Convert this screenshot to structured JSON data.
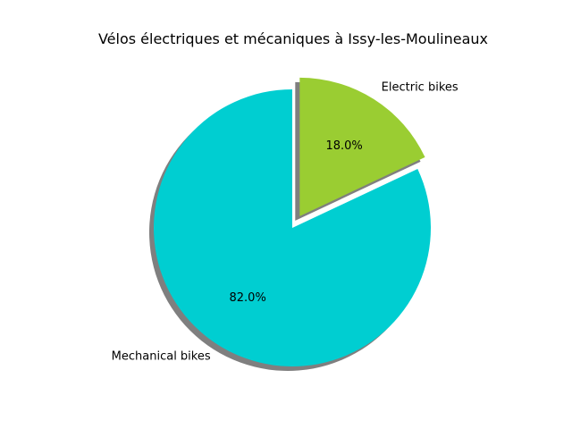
{
  "chart_data": {
    "type": "pie",
    "title": "Vélos électriques et mécaniques à Issy-les-Moulineaux",
    "slices": [
      {
        "label": "Electric bikes",
        "value": 18.0,
        "pct_label": "18.0%",
        "color": "#9acd32",
        "exploded": true
      },
      {
        "label": "Mechanical bikes",
        "value": 82.0,
        "pct_label": "82.0%",
        "color": "#00ced1",
        "exploded": false
      }
    ],
    "start_angle_deg": 90,
    "counterclockwise": false,
    "shadow": true
  }
}
